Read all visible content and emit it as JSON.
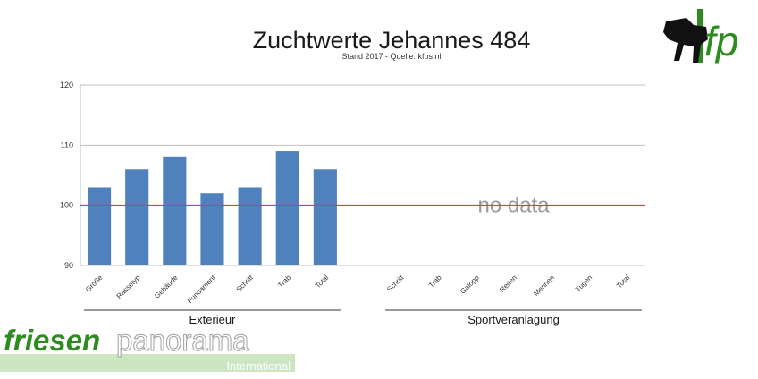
{
  "chart_data": {
    "type": "bar",
    "title": "Zuchtwerte Jehannes 484",
    "subtitle": "Stand 2017 - Quelle: kfps.nl",
    "ylim": [
      90,
      120
    ],
    "yticks": [
      90,
      100,
      110,
      120
    ],
    "grid": true,
    "reference_line": {
      "value": 100,
      "color": "#e23b3b"
    },
    "bar_color": "#4f81bd",
    "groups": [
      {
        "label": "Exterieur",
        "categories": [
          "Größe",
          "Rassetyp",
          "Gebäude",
          "Fundament",
          "Schritt",
          "Trab",
          "Total"
        ],
        "values": [
          103,
          106,
          108,
          102,
          103,
          109,
          106
        ]
      },
      {
        "label": "Sportveranlagung",
        "categories": [
          "Schritt",
          "Trab",
          "Galopp",
          "Reiten",
          "Mennen",
          "Tugen",
          "Total"
        ],
        "values": [
          null,
          null,
          null,
          null,
          null,
          null,
          null
        ],
        "annotation": "no data"
      }
    ]
  },
  "branding": {
    "logo_letters": "fp",
    "wordmark_part1": "friesen",
    "wordmark_part2": "panorama",
    "wordmark_part3": "International",
    "primary_color": "#2e8b1f"
  }
}
